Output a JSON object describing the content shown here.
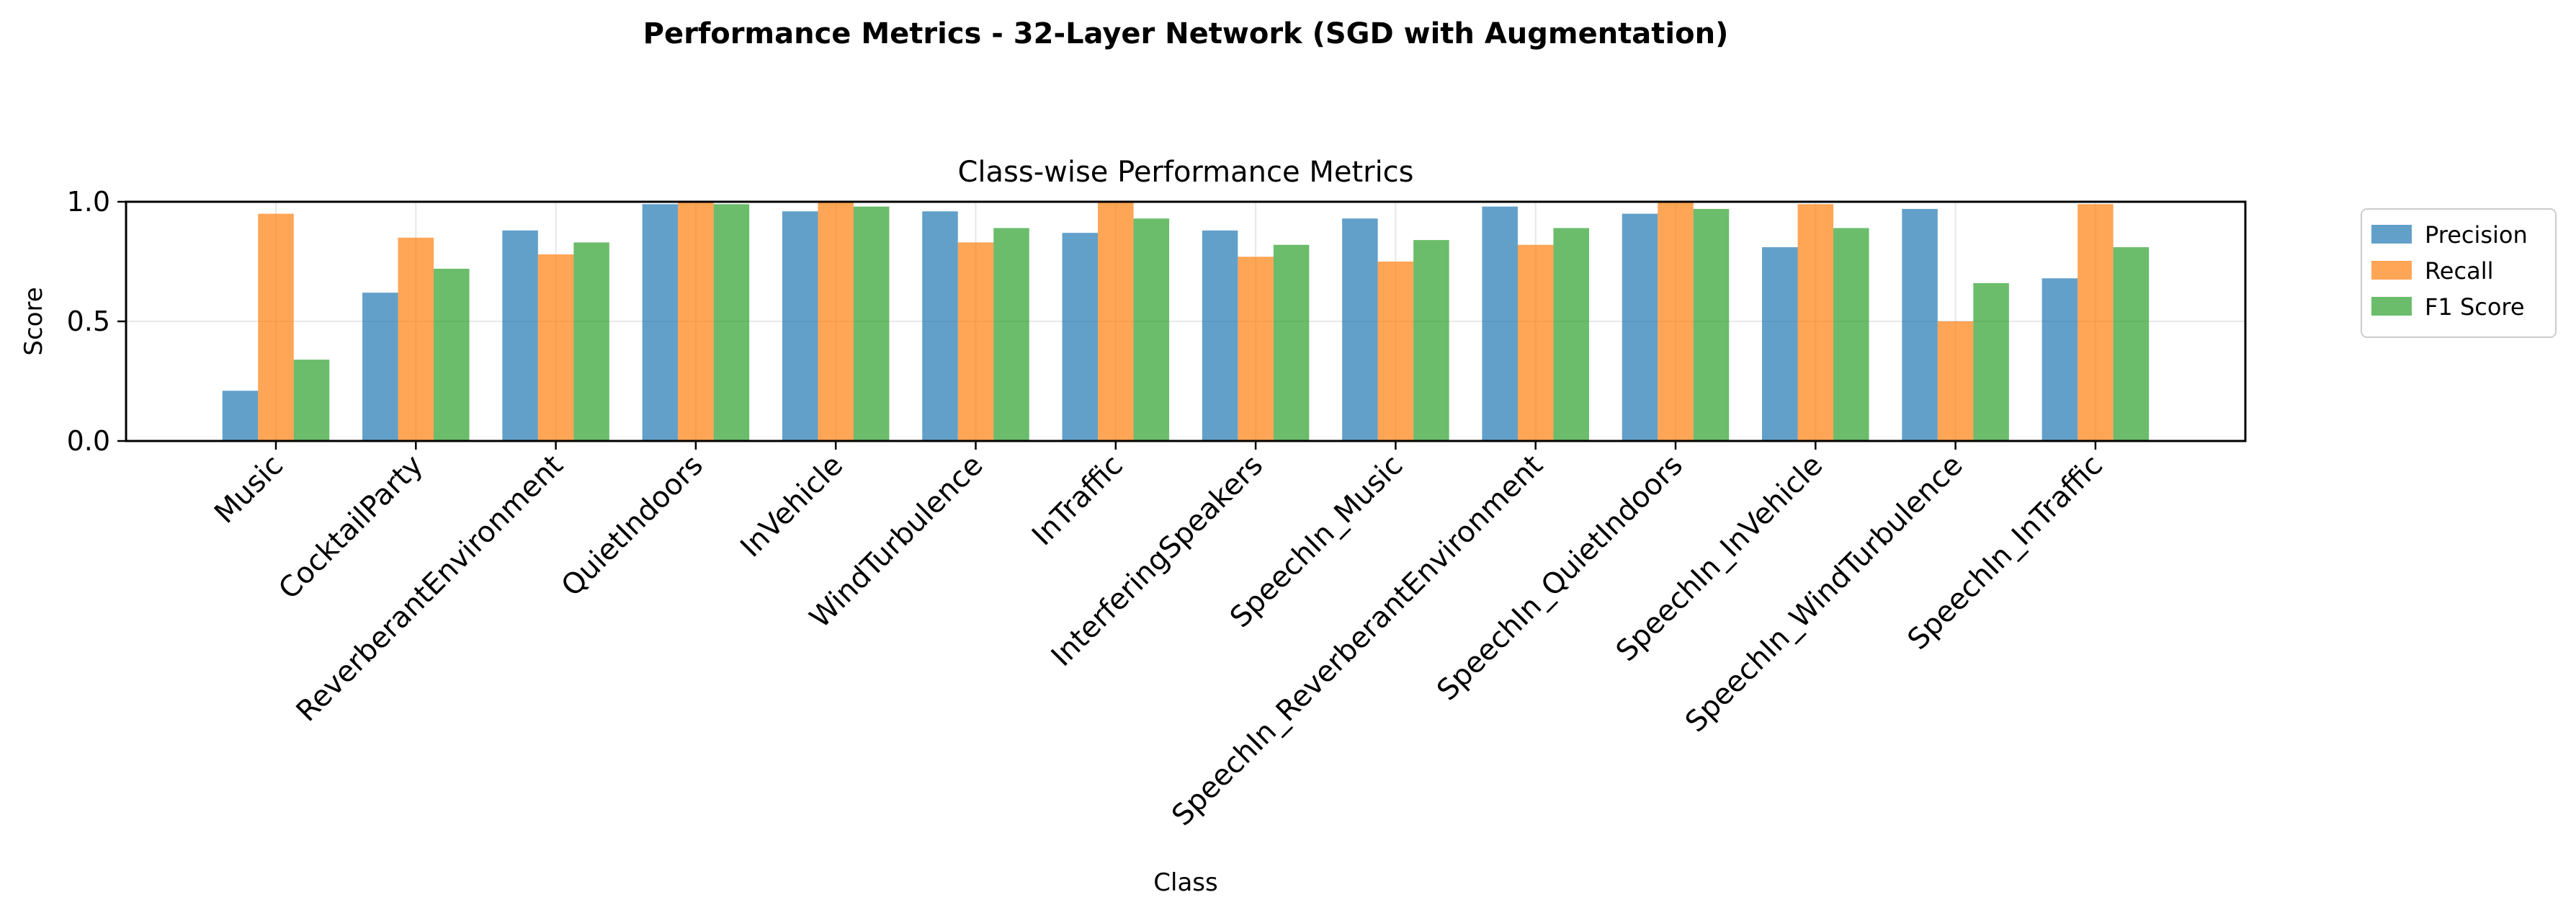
{
  "figure": {
    "suptitle": "Performance Metrics - 32-Layer Network (SGD with Augmentation)"
  },
  "chart_data": {
    "type": "bar",
    "title": "Class-wise Performance Metrics",
    "xlabel": "Class",
    "ylabel": "Score",
    "ylim": [
      0,
      1.0
    ],
    "yticks": [
      0.0,
      0.5,
      1.0
    ],
    "ytick_labels": [
      "0.0",
      "0.5",
      "1.0"
    ],
    "grid": true,
    "legend_position": "outside-right-top",
    "categories": [
      "Music",
      "CocktailParty",
      "ReverberantEnvironment",
      "QuietIndoors",
      "InVehicle",
      "WindTurbulence",
      "InTraffic",
      "InterferingSpeakers",
      "SpeechIn_Music",
      "SpeechIn_ReverberantEnvironment",
      "SpeechIn_QuietIndoors",
      "SpeechIn_InVehicle",
      "SpeechIn_WindTurbulence",
      "SpeechIn_InTraffic"
    ],
    "series": [
      {
        "name": "Precision",
        "color": "#1f77b4",
        "values": [
          0.21,
          0.62,
          0.88,
          0.99,
          0.96,
          0.96,
          0.87,
          0.88,
          0.93,
          0.98,
          0.95,
          0.81,
          0.97,
          0.68
        ]
      },
      {
        "name": "Recall",
        "color": "#ff7f0e",
        "values": [
          0.95,
          0.85,
          0.78,
          1.0,
          1.0,
          0.83,
          1.0,
          0.77,
          0.75,
          0.82,
          1.0,
          0.99,
          0.5,
          0.99
        ]
      },
      {
        "name": "F1 Score",
        "color": "#2ca02c",
        "values": [
          0.34,
          0.72,
          0.83,
          0.99,
          0.98,
          0.89,
          0.93,
          0.82,
          0.84,
          0.89,
          0.97,
          0.89,
          0.66,
          0.81
        ]
      }
    ]
  }
}
